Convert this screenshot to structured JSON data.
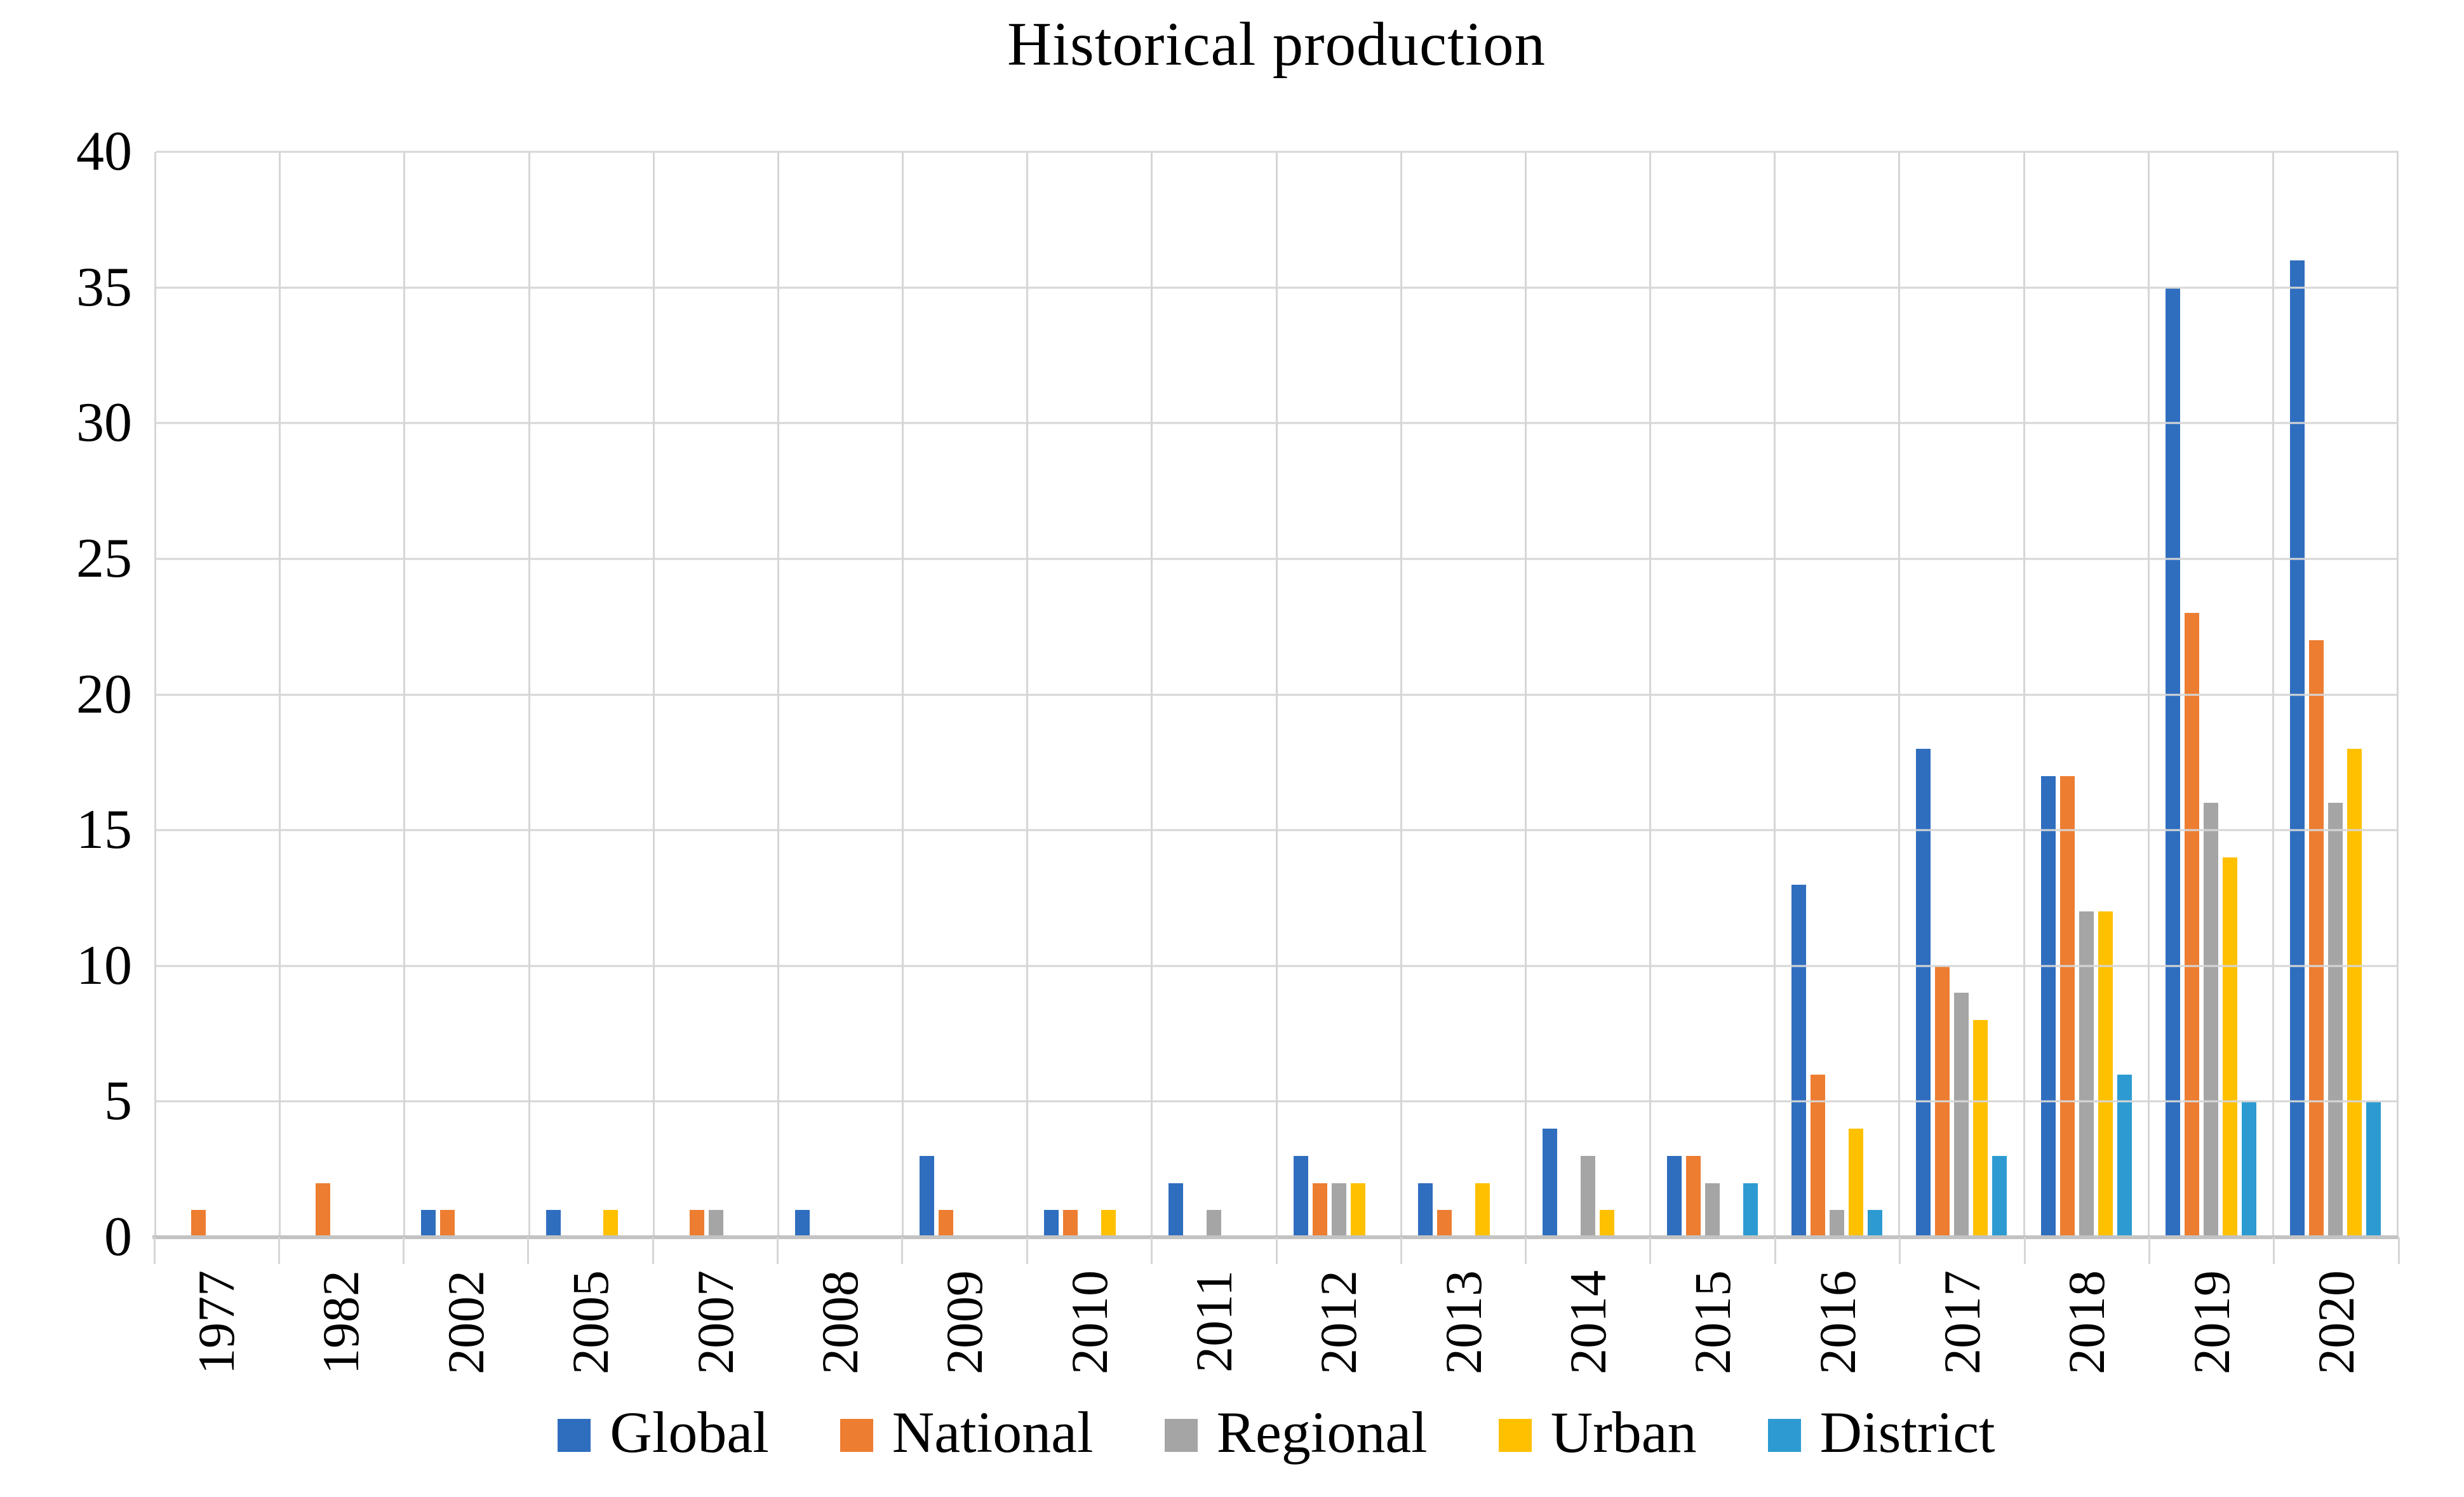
{
  "chart_data": {
    "type": "bar",
    "title": "Historical production",
    "xlabel": "",
    "ylabel": "",
    "ylim": [
      0,
      40
    ],
    "ytick_step": 5,
    "yticks": [
      "0",
      "5",
      "10",
      "15",
      "20",
      "25",
      "30",
      "35",
      "40"
    ],
    "grid": true,
    "legend_position": "bottom",
    "categories": [
      "1977",
      "1982",
      "2002",
      "2005",
      "2007",
      "2008",
      "2009",
      "2010",
      "2011",
      "2012",
      "2013",
      "2014",
      "2015",
      "2016",
      "2017",
      "2018",
      "2019",
      "2020"
    ],
    "series": [
      {
        "name": "Global",
        "color": "#2f6ebf",
        "values": [
          0,
          0,
          1,
          1,
          0,
          1,
          3,
          1,
          2,
          3,
          2,
          4,
          3,
          13,
          18,
          17,
          35,
          36
        ]
      },
      {
        "name": "National",
        "color": "#ed7d31",
        "values": [
          1,
          2,
          1,
          0,
          1,
          0,
          1,
          1,
          0,
          2,
          1,
          0,
          3,
          6,
          10,
          17,
          23,
          22
        ]
      },
      {
        "name": "Regional",
        "color": "#a5a5a5",
        "values": [
          0,
          0,
          0,
          0,
          1,
          0,
          0,
          0,
          1,
          2,
          0,
          3,
          2,
          1,
          9,
          12,
          16,
          16
        ]
      },
      {
        "name": "Urban",
        "color": "#ffc000",
        "values": [
          0,
          0,
          0,
          1,
          0,
          0,
          0,
          1,
          0,
          2,
          2,
          1,
          0,
          4,
          8,
          12,
          14,
          18
        ]
      },
      {
        "name": "District",
        "color": "#2d9bd2",
        "values": [
          0,
          0,
          0,
          0,
          0,
          0,
          0,
          0,
          0,
          0,
          0,
          0,
          2,
          1,
          3,
          6,
          5,
          5
        ]
      }
    ],
    "gridline_color": "#d6d6d6",
    "axis_line_color": "#c3c3c3"
  }
}
